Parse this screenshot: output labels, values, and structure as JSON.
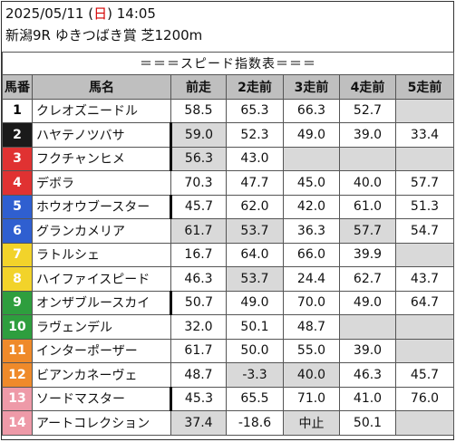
{
  "header": {
    "date": "2025/05/11",
    "dow_open": " (",
    "dow": "日",
    "dow_close": ") ",
    "time": "14:05",
    "race": "新潟9R ゆきつばき賞 芝1200m"
  },
  "table": {
    "title": "＝＝＝スピード指数表＝＝＝",
    "columns": [
      "馬番",
      "馬名",
      "前走",
      "2走前",
      "3走前",
      "4走前",
      "5走前"
    ],
    "rows": [
      {
        "no": "1",
        "name": "クレオズニードル",
        "vals": [
          "58.5",
          "65.3",
          "66.3",
          "52.7",
          ""
        ],
        "hl": [
          false,
          false,
          false,
          false,
          true
        ],
        "bg": "#ffffff",
        "fg": "#000000",
        "thick": false
      },
      {
        "no": "2",
        "name": "ハヤテノツバサ",
        "vals": [
          "59.0",
          "52.3",
          "49.0",
          "39.0",
          "33.4"
        ],
        "hl": [
          true,
          false,
          false,
          false,
          false
        ],
        "bg": "#1a1a1a",
        "fg": "#ffffff",
        "thick": true
      },
      {
        "no": "3",
        "name": "フクチャンヒメ",
        "vals": [
          "56.3",
          "43.0",
          "",
          "",
          ""
        ],
        "hl": [
          true,
          false,
          true,
          true,
          true
        ],
        "bg": "#e03232",
        "fg": "#ffffff",
        "thick": true
      },
      {
        "no": "4",
        "name": "デボラ",
        "vals": [
          "70.3",
          "47.7",
          "45.0",
          "40.0",
          "57.7"
        ],
        "hl": [
          false,
          false,
          false,
          false,
          false
        ],
        "bg": "#e03232",
        "fg": "#ffffff",
        "thick": false
      },
      {
        "no": "5",
        "name": "ホウオウブースター",
        "vals": [
          "45.7",
          "62.0",
          "42.0",
          "61.0",
          "51.3"
        ],
        "hl": [
          false,
          false,
          false,
          false,
          false
        ],
        "bg": "#2f5fd0",
        "fg": "#ffffff",
        "thick": true
      },
      {
        "no": "6",
        "name": "グランカメリア",
        "vals": [
          "61.7",
          "53.7",
          "36.3",
          "57.7",
          "54.7"
        ],
        "hl": [
          true,
          true,
          false,
          true,
          false
        ],
        "bg": "#2f5fd0",
        "fg": "#ffffff",
        "thick": false
      },
      {
        "no": "7",
        "name": "ラトルシェ",
        "vals": [
          "16.7",
          "64.0",
          "66.0",
          "39.9",
          ""
        ],
        "hl": [
          false,
          false,
          false,
          false,
          true
        ],
        "bg": "#f2d32a",
        "fg": "#ffffff",
        "thick": false
      },
      {
        "no": "8",
        "name": "ハイファイスピード",
        "vals": [
          "46.3",
          "53.7",
          "24.4",
          "62.7",
          "43.7"
        ],
        "hl": [
          false,
          true,
          false,
          false,
          false
        ],
        "bg": "#f2d32a",
        "fg": "#ffffff",
        "thick": false
      },
      {
        "no": "9",
        "name": "オンザブルースカイ",
        "vals": [
          "50.7",
          "49.0",
          "70.0",
          "49.0",
          "64.7"
        ],
        "hl": [
          false,
          false,
          false,
          false,
          false
        ],
        "bg": "#2e9e3e",
        "fg": "#ffffff",
        "thick": true
      },
      {
        "no": "10",
        "name": "ラヴェンデル",
        "vals": [
          "32.0",
          "50.1",
          "48.7",
          "",
          ""
        ],
        "hl": [
          false,
          false,
          false,
          true,
          true
        ],
        "bg": "#2e9e3e",
        "fg": "#ffffff",
        "thick": false
      },
      {
        "no": "11",
        "name": "インターポーザー",
        "vals": [
          "61.7",
          "50.0",
          "55.0",
          "39.0",
          ""
        ],
        "hl": [
          false,
          false,
          false,
          false,
          true
        ],
        "bg": "#ef8a2a",
        "fg": "#ffffff",
        "thick": false
      },
      {
        "no": "12",
        "name": "ビアンカネーヴェ",
        "vals": [
          "48.7",
          "-3.3",
          "40.0",
          "46.3",
          "45.7"
        ],
        "hl": [
          false,
          true,
          true,
          false,
          false
        ],
        "bg": "#ef8a2a",
        "fg": "#ffffff",
        "thick": false
      },
      {
        "no": "13",
        "name": "ソードマスター",
        "vals": [
          "45.3",
          "65.5",
          "71.0",
          "41.0",
          "76.0"
        ],
        "hl": [
          false,
          false,
          false,
          false,
          false
        ],
        "bg": "#ee9aa8",
        "fg": "#ffffff",
        "thick": true
      },
      {
        "no": "14",
        "name": "アートコレクション",
        "vals": [
          "37.4",
          "-18.6",
          "中止",
          "50.1",
          ""
        ],
        "hl": [
          true,
          false,
          true,
          false,
          true
        ],
        "bg": "#ee9aa8",
        "fg": "#ffffff",
        "thick": false
      }
    ]
  }
}
